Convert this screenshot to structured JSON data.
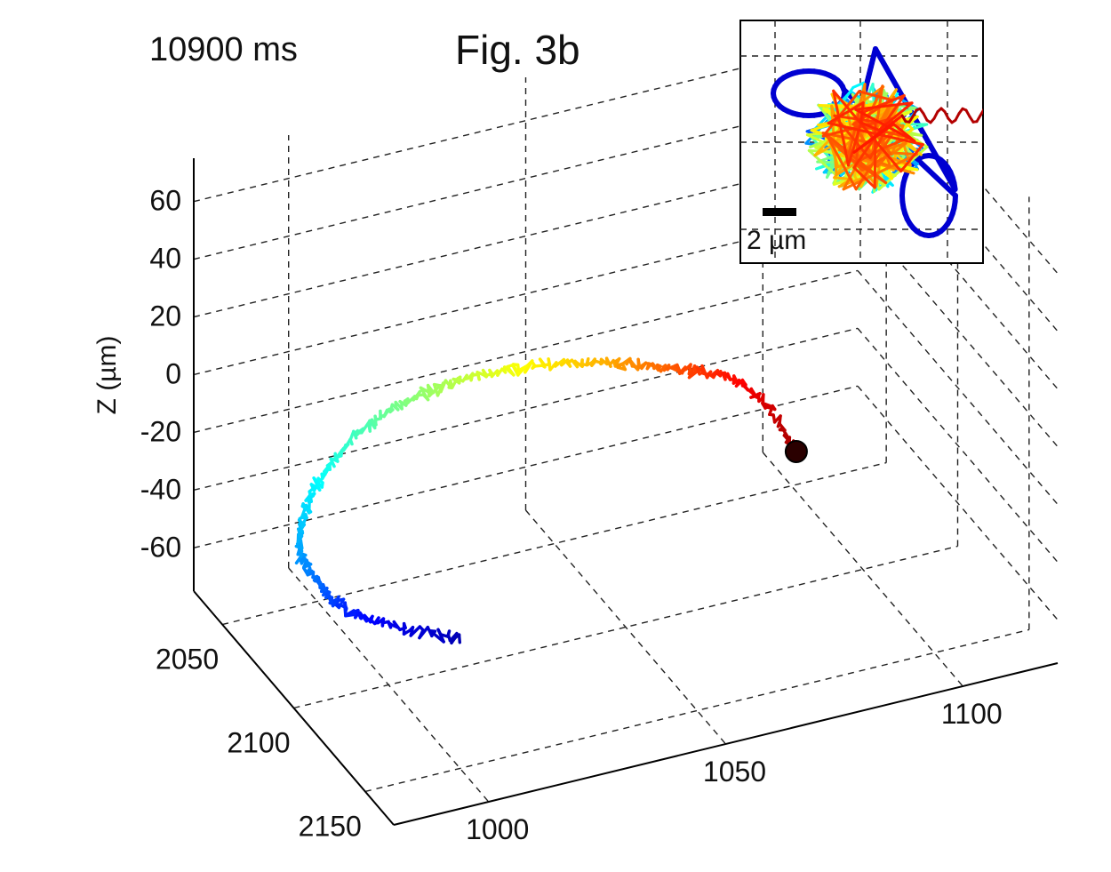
{
  "chart_data": [
    {
      "type": "line",
      "projection": "3d",
      "title": "Fig. 3b",
      "timestamp": "10900 ms",
      "zlabel": "Z (µm)",
      "xlabel": "",
      "ylabel": "",
      "grid": true,
      "colormap": "jet",
      "z_ticks": [
        "60",
        "40",
        "20",
        "0",
        "-20",
        "-40",
        "-60"
      ],
      "y_ticks": [
        "2050",
        "2100",
        "2150"
      ],
      "x_ticks": [
        "1000",
        "1050",
        "1100"
      ],
      "series": [
        {
          "points": [
            {
              "x": 1012,
              "y": 2110,
              "z": -58
            },
            {
              "x": 1000,
              "y": 2100,
              "z": -54
            },
            {
              "x": 992,
              "y": 2095,
              "z": -48
            },
            {
              "x": 988,
              "y": 2092,
              "z": -40
            },
            {
              "x": 985,
              "y": 2088,
              "z": -30
            },
            {
              "x": 988,
              "y": 2082,
              "z": -20
            },
            {
              "x": 995,
              "y": 2075,
              "z": -12
            },
            {
              "x": 1005,
              "y": 2068,
              "z": -6
            },
            {
              "x": 1016,
              "y": 2064,
              "z": -3
            },
            {
              "x": 1028,
              "y": 2062,
              "z": -2
            },
            {
              "x": 1040,
              "y": 2062,
              "z": -3
            },
            {
              "x": 1052,
              "y": 2064,
              "z": -5
            },
            {
              "x": 1062,
              "y": 2067,
              "z": -8
            },
            {
              "x": 1070,
              "y": 2072,
              "z": -10
            },
            {
              "x": 1078,
              "y": 2078,
              "z": -12
            },
            {
              "x": 1084,
              "y": 2085,
              "z": -20
            },
            {
              "x": 1088,
              "y": 2092,
              "z": -34
            }
          ],
          "end_marker": true
        }
      ]
    },
    {
      "type": "line",
      "panel": "inset",
      "scale_bar_label": "2 µm",
      "grid": true,
      "colormap": "jet"
    }
  ]
}
